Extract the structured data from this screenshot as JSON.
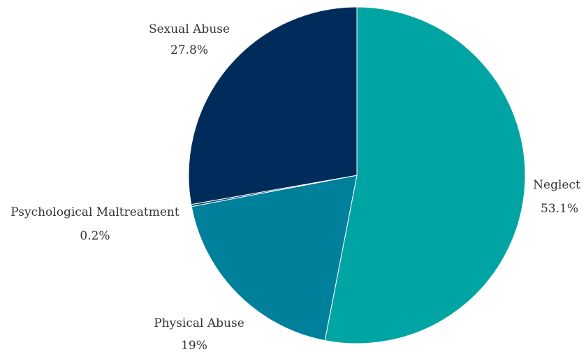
{
  "chart_data": {
    "type": "pie",
    "title": "",
    "slices": [
      {
        "label": "Neglect",
        "value": 53.1,
        "display": "53.1%",
        "color": "#00a5a3"
      },
      {
        "label": "Physical Abuse",
        "value": 19,
        "display": "19%",
        "color": "#00809b"
      },
      {
        "label": "Psychological Maltreatment",
        "value": 0.2,
        "display": "0.2%",
        "color": "#004c6b"
      },
      {
        "label": "Sexual Abuse",
        "value": 27.8,
        "display": "27.8%",
        "color": "#002c5c"
      }
    ],
    "legend": "none"
  }
}
